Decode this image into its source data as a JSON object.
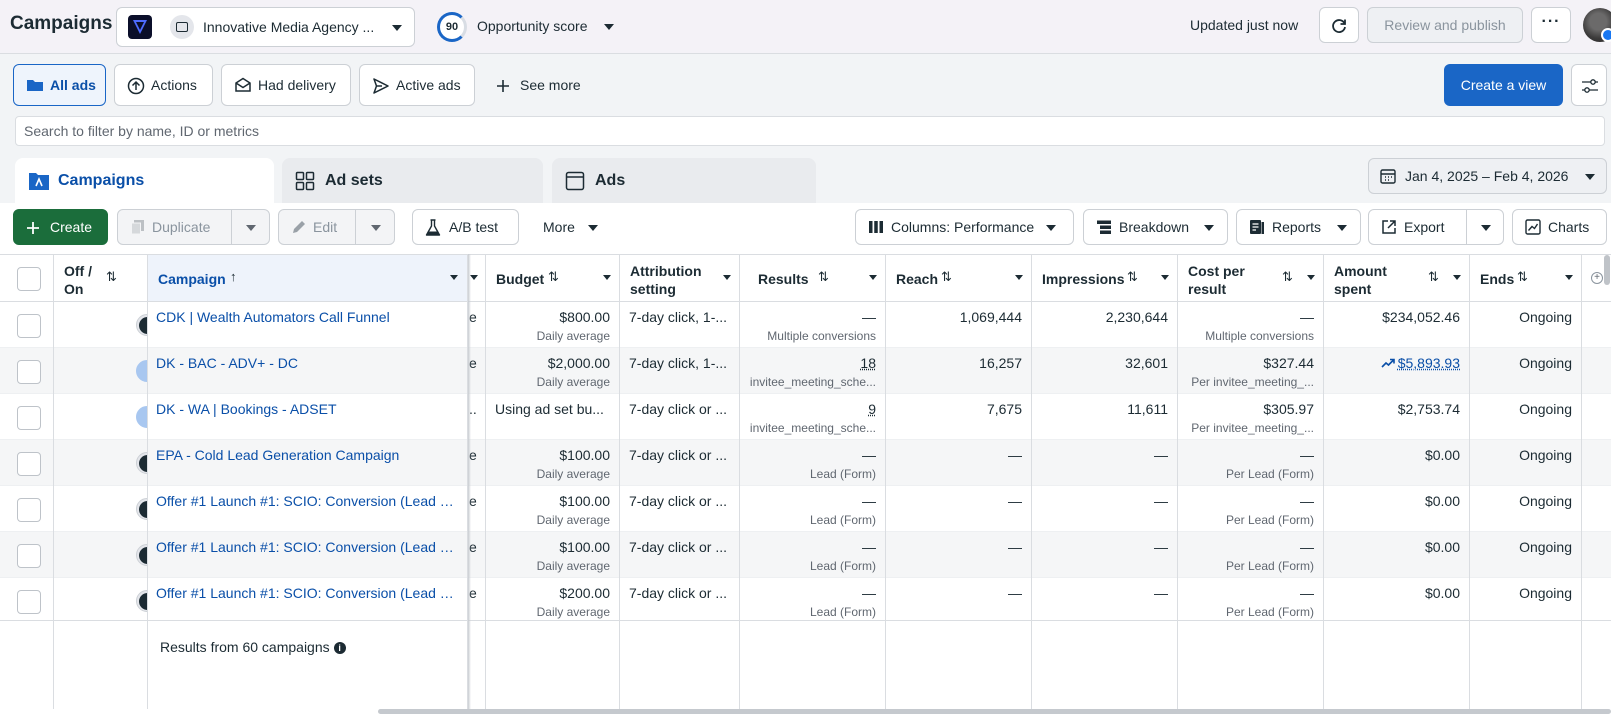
{
  "topbar": {
    "title": "Campaigns",
    "account_name": "Innovative Media Agency ...",
    "opportunity_score": "90",
    "opportunity_label": "Opportunity score",
    "updated": "Updated just now",
    "review_label": "Review and publish",
    "more_label": "···"
  },
  "filters": {
    "all_ads": "All ads",
    "actions": "Actions",
    "had_delivery": "Had delivery",
    "active_ads": "Active ads",
    "see_more": "See more",
    "create_view": "Create a view"
  },
  "search": {
    "placeholder": "Search to filter by name, ID or metrics"
  },
  "tabs": {
    "campaigns": "Campaigns",
    "adsets": "Ad sets",
    "ads": "Ads"
  },
  "date_range": "Jan 4, 2025 – Feb 4, 2026",
  "toolbar": {
    "create": "Create",
    "duplicate": "Duplicate",
    "edit": "Edit",
    "ab_test": "A/B test",
    "more": "More",
    "columns": "Columns: Performance",
    "breakdown": "Breakdown",
    "reports": "Reports",
    "export": "Export",
    "charts": "Charts"
  },
  "table": {
    "headers": {
      "off_on": [
        "Off /",
        "On"
      ],
      "campaign": "Campaign",
      "budget": "Budget",
      "attribution": [
        "Attribution",
        "setting"
      ],
      "results": "Results",
      "reach": "Reach",
      "impressions": "Impressions",
      "cost": [
        "Cost per",
        "result"
      ],
      "amount": [
        "Amount",
        "spent"
      ],
      "ends": "Ends"
    },
    "rows": [
      {
        "on": false,
        "campaign": "CDK | Wealth Automators Call Funnel",
        "clip": "e",
        "budget": "$800.00",
        "budget_sub": "Daily average",
        "attribution": "7-day click, 1-...",
        "results": "—",
        "results_sub": "Multiple conversions",
        "reach": "1,069,444",
        "impressions": "2,230,644",
        "cost": "—",
        "cost_sub": "Multiple conversions",
        "amount": "$234,052.46",
        "ends": "Ongoing"
      },
      {
        "on": true,
        "campaign": "DK - BAC - ADV+ - DC",
        "clip": "e",
        "budget": "$2,000.00",
        "budget_sub": "Daily average",
        "attribution": "7-day click, 1-...",
        "results": "18",
        "results_sub": "invitee_meeting_sche...",
        "reach": "16,257",
        "impressions": "32,601",
        "cost": "$327.44",
        "cost_sub": "Per invitee_meeting_...",
        "amount": "$5,893.93",
        "ends": "Ongoing"
      },
      {
        "on": true,
        "campaign": "DK - WA | Bookings - ADSET",
        "clip": "..",
        "budget": "Using ad set bu...",
        "budget_sub": "",
        "attribution": "7-day click or ...",
        "results": "9",
        "results_sub": "invitee_meeting_sche...",
        "reach": "7,675",
        "impressions": "11,611",
        "cost": "$305.97",
        "cost_sub": "Per invitee_meeting_...",
        "amount": "$2,753.74",
        "ends": "Ongoing"
      },
      {
        "on": false,
        "campaign": "EPA - Cold Lead Generation Campaign",
        "clip": "e",
        "budget": "$100.00",
        "budget_sub": "Daily average",
        "attribution": "7-day click or ...",
        "results": "—",
        "results_sub": "Lead (Form)",
        "reach": "—",
        "impressions": "—",
        "cost": "—",
        "cost_sub": "Per Lead (Form)",
        "amount": "$0.00",
        "ends": "Ongoing"
      },
      {
        "on": false,
        "campaign": "Offer #1 Launch #1: SCIO: Conversion (Lead F...",
        "clip": "e",
        "budget": "$100.00",
        "budget_sub": "Daily average",
        "attribution": "7-day click or ...",
        "results": "—",
        "results_sub": "Lead (Form)",
        "reach": "—",
        "impressions": "—",
        "cost": "—",
        "cost_sub": "Per Lead (Form)",
        "amount": "$0.00",
        "ends": "Ongoing"
      },
      {
        "on": false,
        "campaign": "Offer #1 Launch #1: SCIO: Conversion (Lead F...",
        "clip": "e",
        "budget": "$100.00",
        "budget_sub": "Daily average",
        "attribution": "7-day click or ...",
        "results": "—",
        "results_sub": "Lead (Form)",
        "reach": "—",
        "impressions": "—",
        "cost": "—",
        "cost_sub": "Per Lead (Form)",
        "amount": "$0.00",
        "ends": "Ongoing"
      },
      {
        "on": false,
        "campaign": "Offer #1 Launch #1: SCIO: Conversion (Lead F...",
        "clip": "e",
        "budget": "$200.00",
        "budget_sub": "Daily average",
        "attribution": "7-day click or ...",
        "results": "—",
        "results_sub": "Lead (Form)",
        "reach": "—",
        "impressions": "—",
        "cost": "—",
        "cost_sub": "Per Lead (Form)",
        "amount": "$0.00",
        "ends": "Ongoing"
      }
    ],
    "footer": "Results from 60 campaigns"
  }
}
